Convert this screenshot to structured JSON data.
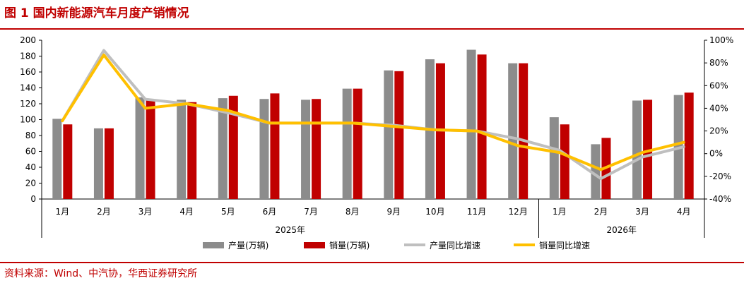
{
  "title": "图 1  国内新能源汽车月度产销情况",
  "source": "资料来源：Wind、中汽协，华西证券研究所",
  "colors": {
    "accent": "#c00000",
    "production_bar": "#8c8c8c",
    "sales_bar": "#c00000",
    "production_yoy_line": "#bfbfbf",
    "sales_yoy_line": "#ffc000"
  },
  "chart_data": {
    "type": "bar",
    "categories": [
      "1月",
      "2月",
      "3月",
      "4月",
      "5月",
      "6月",
      "7月",
      "8月",
      "9月",
      "10月",
      "11月",
      "12月",
      "1月",
      "2月",
      "3月",
      "4月"
    ],
    "groups": [
      {
        "label": "2025年",
        "count": 12
      },
      {
        "label": "2026年",
        "count": 4
      }
    ],
    "series": [
      {
        "name": "产量(万辆)",
        "kind": "bar",
        "axis": "left",
        "values": [
          101,
          89,
          128,
          125,
          127,
          126,
          125,
          139,
          162,
          176,
          188,
          171,
          103,
          69,
          124,
          131
        ]
      },
      {
        "name": "销量(万辆)",
        "kind": "bar",
        "axis": "left",
        "values": [
          94,
          89,
          124,
          122,
          130,
          133,
          126,
          139,
          161,
          171,
          182,
          171,
          94,
          77,
          125,
          134
        ]
      },
      {
        "name": "产量同比增速",
        "kind": "line",
        "axis": "right",
        "values": [
          29,
          91,
          48,
          44,
          36,
          27,
          27,
          27,
          25,
          21,
          20,
          13,
          3,
          -22,
          -3,
          6
        ]
      },
      {
        "name": "销量同比增速",
        "kind": "line",
        "axis": "right",
        "values": [
          29,
          87,
          40,
          44,
          38,
          27,
          27,
          27,
          24,
          21,
          20,
          7,
          1,
          -14,
          1,
          10
        ]
      }
    ],
    "y_left": {
      "min": 0,
      "max": 200,
      "step": 20
    },
    "y_right": {
      "min": -40,
      "max": 100,
      "step": 20
    },
    "y_left_ticks": [
      "0",
      "20",
      "40",
      "60",
      "80",
      "100",
      "120",
      "140",
      "160",
      "180",
      "200"
    ],
    "y_right_ticks": [
      "-40%",
      "-20%",
      "0%",
      "20%",
      "40%",
      "60%",
      "80%",
      "100%"
    ],
    "grid": false,
    "legend_position": "bottom"
  }
}
